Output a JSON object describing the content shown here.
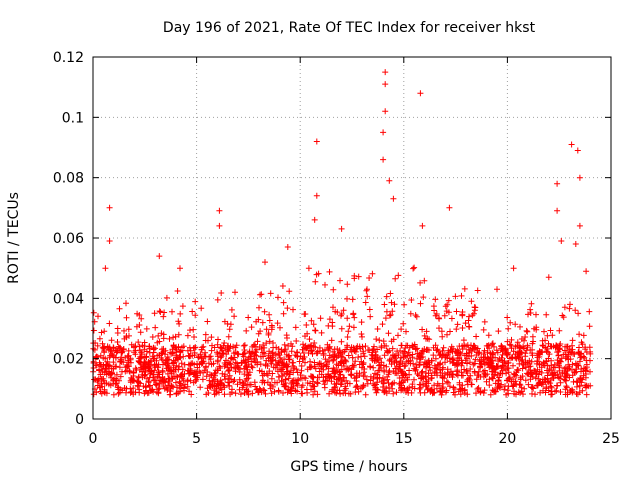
{
  "chart_data": {
    "type": "scatter",
    "title": "Day 196 of 2021, Rate Of TEC Index for receiver hkst",
    "xlabel": "GPS time / hours",
    "ylabel": "ROTI / TECUs",
    "xlim": [
      0,
      25
    ],
    "ylim": [
      0,
      0.12
    ],
    "x_ticks": [
      0,
      5,
      10,
      15,
      20,
      25
    ],
    "y_ticks": [
      0,
      0.02,
      0.04,
      0.06,
      0.08,
      0.1,
      0.12
    ],
    "x_tick_labels": [
      "0",
      "5",
      "10",
      "15",
      "20",
      "25"
    ],
    "y_tick_labels": [
      "0",
      "0.02",
      "0.04",
      "0.06",
      "0.08",
      "0.1",
      "0.12"
    ],
    "grid": true,
    "marker": "+",
    "color": "#ff0000",
    "x_range_of_data": [
      0,
      24
    ],
    "typical_band": [
      0.008,
      0.03
    ],
    "notable_points": [
      {
        "x": 0.8,
        "y": 0.07
      },
      {
        "x": 0.8,
        "y": 0.059
      },
      {
        "x": 0.6,
        "y": 0.05
      },
      {
        "x": 3.2,
        "y": 0.054
      },
      {
        "x": 4.2,
        "y": 0.05
      },
      {
        "x": 6.1,
        "y": 0.069
      },
      {
        "x": 6.1,
        "y": 0.064
      },
      {
        "x": 8.3,
        "y": 0.052
      },
      {
        "x": 9.4,
        "y": 0.057
      },
      {
        "x": 10.8,
        "y": 0.092
      },
      {
        "x": 10.8,
        "y": 0.074
      },
      {
        "x": 10.7,
        "y": 0.066
      },
      {
        "x": 12.0,
        "y": 0.063
      },
      {
        "x": 14.1,
        "y": 0.115
      },
      {
        "x": 14.1,
        "y": 0.111
      },
      {
        "x": 14.1,
        "y": 0.102
      },
      {
        "x": 14.0,
        "y": 0.095
      },
      {
        "x": 14.0,
        "y": 0.086
      },
      {
        "x": 14.3,
        "y": 0.079
      },
      {
        "x": 14.5,
        "y": 0.073
      },
      {
        "x": 15.8,
        "y": 0.108
      },
      {
        "x": 15.9,
        "y": 0.064
      },
      {
        "x": 17.2,
        "y": 0.07
      },
      {
        "x": 19.5,
        "y": 0.043
      },
      {
        "x": 20.3,
        "y": 0.05
      },
      {
        "x": 22.0,
        "y": 0.047
      },
      {
        "x": 22.4,
        "y": 0.078
      },
      {
        "x": 22.4,
        "y": 0.069
      },
      {
        "x": 22.6,
        "y": 0.059
      },
      {
        "x": 23.1,
        "y": 0.091
      },
      {
        "x": 23.4,
        "y": 0.089
      },
      {
        "x": 23.5,
        "y": 0.08
      },
      {
        "x": 23.5,
        "y": 0.064
      },
      {
        "x": 23.3,
        "y": 0.058
      },
      {
        "x": 23.8,
        "y": 0.049
      }
    ]
  }
}
